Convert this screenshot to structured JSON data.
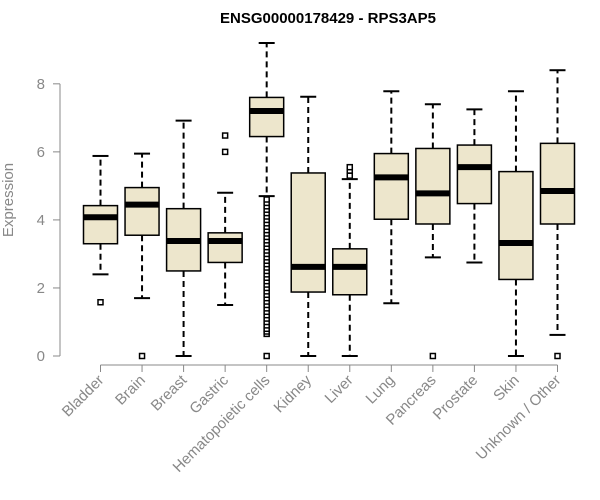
{
  "chart_data": {
    "type": "boxplot",
    "title": "ENSG00000178429 - RPS3AP5",
    "xlabel": "",
    "ylabel": "Expression",
    "ylim": [
      0,
      9.2
    ],
    "yticks": [
      0,
      2,
      4,
      6,
      8
    ],
    "box_color": "#ede6cc",
    "median_color": "#000000",
    "categories": [
      "Bladder",
      "Brain",
      "Breast",
      "Gastric",
      "Hematopoietic cells",
      "Kidney",
      "Liver",
      "Lung",
      "Pancreas",
      "Prostate",
      "Skin",
      "Unknown / Other"
    ],
    "boxes": [
      {
        "whisker_low": 2.4,
        "q1": 3.3,
        "median": 4.08,
        "q3": 4.42,
        "whisker_high": 5.88,
        "outliers": [
          1.58
        ]
      },
      {
        "whisker_low": 1.7,
        "q1": 3.55,
        "median": 4.45,
        "q3": 4.95,
        "whisker_high": 5.95,
        "outliers": [
          0
        ]
      },
      {
        "whisker_low": 0,
        "q1": 2.5,
        "median": 3.38,
        "q3": 4.33,
        "whisker_high": 6.92,
        "outliers": []
      },
      {
        "whisker_low": 1.5,
        "q1": 2.75,
        "median": 3.38,
        "q3": 3.62,
        "whisker_high": 4.8,
        "outliers": [
          6.0,
          6.48
        ]
      },
      {
        "whisker_low": 4.7,
        "q1": 6.45,
        "median": 7.2,
        "q3": 7.6,
        "whisker_high": 9.2,
        "outliers": [
          0,
          0.65,
          0.72,
          0.8,
          0.9,
          1.0,
          1.1,
          1.2,
          1.3,
          1.4,
          1.5,
          1.6,
          1.7,
          1.8,
          1.9,
          2.0,
          2.1,
          2.2,
          2.3,
          2.4,
          2.5,
          2.6,
          2.7,
          2.8,
          2.9,
          3.0,
          3.1,
          3.2,
          3.3,
          3.4,
          3.5,
          3.6,
          3.7,
          3.8,
          3.9,
          4.0,
          4.1,
          4.2,
          4.3,
          4.4,
          4.5,
          4.6
        ]
      },
      {
        "whisker_low": 0,
        "q1": 1.88,
        "median": 2.62,
        "q3": 5.38,
        "whisker_high": 7.62,
        "outliers": []
      },
      {
        "whisker_low": 0,
        "q1": 1.8,
        "median": 2.62,
        "q3": 3.15,
        "whisker_high": 5.2,
        "outliers": [
          5.3,
          5.45,
          5.55
        ]
      },
      {
        "whisker_low": 1.55,
        "q1": 4.02,
        "median": 5.25,
        "q3": 5.95,
        "whisker_high": 7.78,
        "outliers": []
      },
      {
        "whisker_low": 2.9,
        "q1": 3.88,
        "median": 4.78,
        "q3": 6.1,
        "whisker_high": 7.4,
        "outliers": [
          0
        ]
      },
      {
        "whisker_low": 2.75,
        "q1": 4.48,
        "median": 5.55,
        "q3": 6.2,
        "whisker_high": 7.25,
        "outliers": []
      },
      {
        "whisker_low": 0,
        "q1": 2.25,
        "median": 3.32,
        "q3": 5.42,
        "whisker_high": 7.78,
        "outliers": []
      },
      {
        "whisker_low": 0.62,
        "q1": 3.88,
        "median": 4.85,
        "q3": 6.25,
        "whisker_high": 8.4,
        "outliers": [
          0
        ]
      }
    ]
  }
}
